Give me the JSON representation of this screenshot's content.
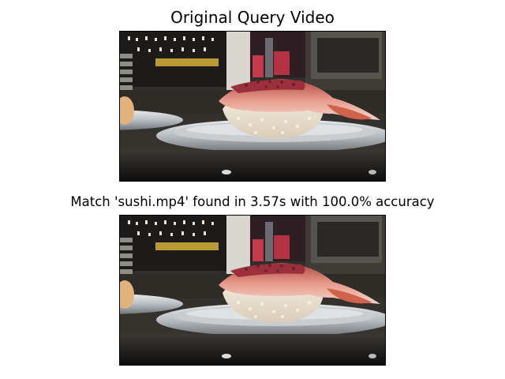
{
  "figure": {
    "query_title": "Original Query Video",
    "match_title": "Match 'sushi.mp4' found in 3.57s with 100.0% accuracy",
    "query_frame_icon": "sushi-video-frame-icon",
    "match_frame_icon": "sushi-video-frame-icon"
  },
  "colors": {
    "background": "#ffffff",
    "text": "#000000",
    "frame_border": "#000000"
  }
}
